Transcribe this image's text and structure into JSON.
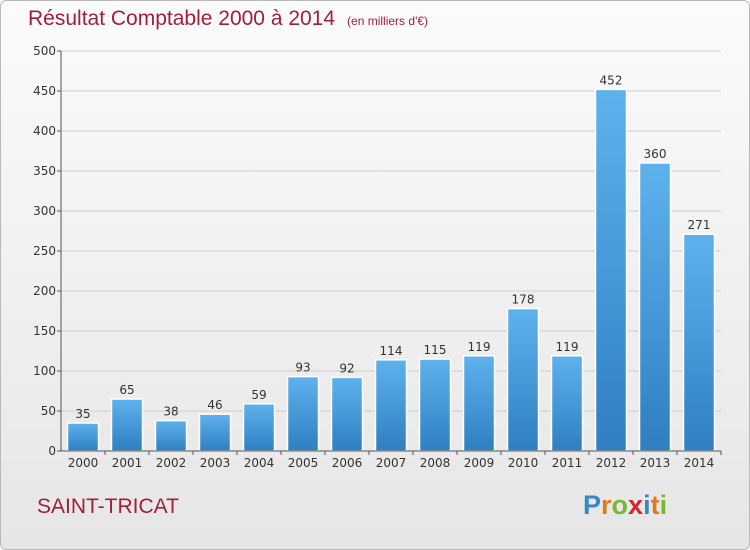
{
  "header": {
    "title": "Résultat Comptable 2000 à 2014",
    "unit": "(en milliers d'€)"
  },
  "footer": {
    "commune": "SAINT-TRICAT",
    "logo_text": "Proxiti",
    "logo_letters": [
      {
        "ch": "P",
        "color": "#3a86c8"
      },
      {
        "ch": "r",
        "color": "#e07a1f"
      },
      {
        "ch": "o",
        "color": "#7ab833"
      },
      {
        "ch": "x",
        "color": "#d6262c"
      },
      {
        "ch": "i",
        "color": "#3a86c8"
      },
      {
        "ch": "t",
        "color": "#e07a1f"
      },
      {
        "ch": "i",
        "color": "#7ab833"
      }
    ]
  },
  "colors": {
    "title": "#a0203c",
    "bar_top": "#5eb2ec",
    "bar_bottom": "#2f7fc1",
    "grid": "#cfcfcf"
  },
  "chart_data": {
    "type": "bar",
    "title": "Résultat Comptable 2000 à 2014",
    "subtitle": "(en milliers d'€)",
    "xlabel": "",
    "ylabel": "",
    "categories": [
      "2000",
      "2001",
      "2002",
      "2003",
      "2004",
      "2005",
      "2006",
      "2007",
      "2008",
      "2009",
      "2010",
      "2011",
      "2012",
      "2013",
      "2014"
    ],
    "values": [
      35,
      65,
      38,
      46,
      59,
      93,
      92,
      114,
      115,
      119,
      178,
      119,
      452,
      360,
      271
    ],
    "ylim": [
      0,
      500
    ],
    "yticks": [
      0,
      50,
      100,
      150,
      200,
      250,
      300,
      350,
      400,
      450,
      500
    ],
    "grid": true,
    "data_labels": true
  }
}
